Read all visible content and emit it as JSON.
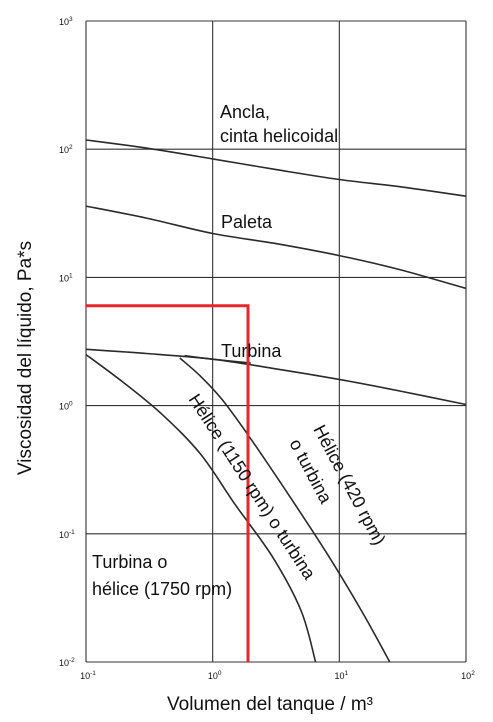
{
  "chart_data": {
    "type": "line",
    "xlabel": "Volumen del tanque / m³",
    "ylabel": "Viscosidad del líquido, Pa*s",
    "xscale": "log",
    "yscale": "log",
    "xlim": [
      0.1,
      100
    ],
    "ylim": [
      0.01,
      1000
    ],
    "grid": true,
    "x_ticks": [
      {
        "base": "10",
        "exp": "-1",
        "value": 0.1
      },
      {
        "base": "10",
        "exp": "0",
        "value": 1
      },
      {
        "base": "10",
        "exp": "1",
        "value": 10
      },
      {
        "base": "10",
        "exp": "2",
        "value": 100
      }
    ],
    "y_ticks": [
      {
        "base": "10",
        "exp": "-2",
        "value": 0.01
      },
      {
        "base": "10",
        "exp": "-1",
        "value": 0.1
      },
      {
        "base": "10",
        "exp": "0",
        "value": 1
      },
      {
        "base": "10",
        "exp": "1",
        "value": 10
      },
      {
        "base": "10",
        "exp": "2",
        "value": 100
      },
      {
        "base": "10",
        "exp": "3",
        "value": 1000
      }
    ],
    "series": [
      {
        "points": [
          [
            0.1,
            118
          ],
          [
            0.3,
            102
          ],
          [
            1,
            84
          ],
          [
            3,
            70
          ],
          [
            10,
            58
          ],
          [
            30,
            51
          ],
          [
            100,
            43
          ]
        ]
      },
      {
        "points": [
          [
            0.1,
            36
          ],
          [
            0.3,
            29
          ],
          [
            1,
            22
          ],
          [
            3,
            18.5
          ],
          [
            10,
            14.8
          ],
          [
            30,
            11.5
          ],
          [
            100,
            8.2
          ]
        ]
      },
      {
        "points": [
          [
            0.1,
            2.75
          ],
          [
            0.3,
            2.55
          ],
          [
            1,
            2.3
          ],
          [
            3,
            1.95
          ],
          [
            10,
            1.6
          ],
          [
            30,
            1.3
          ],
          [
            100,
            1.02
          ]
        ]
      },
      {
        "points": [
          [
            0.1,
            2.5
          ],
          [
            0.2,
            1.5
          ],
          [
            0.4,
            0.85
          ],
          [
            0.8,
            0.42
          ],
          [
            1.5,
            0.17
          ],
          [
            3,
            0.065
          ],
          [
            5,
            0.025
          ],
          [
            6.5,
            0.01
          ]
        ]
      },
      {
        "points": [
          [
            0.55,
            2.35
          ],
          [
            0.8,
            1.7
          ],
          [
            1.2,
            1.1
          ],
          [
            2,
            0.55
          ],
          [
            4,
            0.2
          ],
          [
            8,
            0.07
          ],
          [
            15,
            0.025
          ],
          [
            25,
            0.01
          ]
        ]
      },
      {
        "points": [
          [
            0.6,
            2.45
          ],
          [
            1,
            2.3
          ],
          [
            2,
            2.15
          ]
        ]
      }
    ],
    "labels": {
      "ancla_line1": "Ancla,",
      "ancla_line2": "cinta helicoidal",
      "paleta": "Paleta",
      "turbina": "Turbina",
      "helice_1150": "Hélice (1150 rpm) o turbina",
      "helice_420_line1": "Hélice (420 rpm)",
      "helice_420_line2": "o turbina",
      "turbina_helice_line1": "Turbina o",
      "turbina_helice_line2": "hélice (1750 rpm)"
    },
    "highlight": {
      "color": "#e8262b",
      "points": [
        [
          0.1,
          6
        ],
        [
          1.9,
          6
        ],
        [
          1.9,
          0.01
        ]
      ]
    }
  }
}
